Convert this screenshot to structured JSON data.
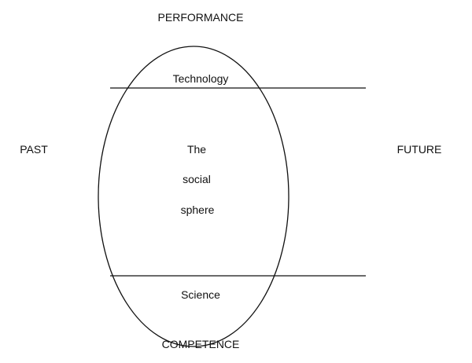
{
  "labels": {
    "top": "PERFORMANCE",
    "bottom": "COMPETENCE",
    "left": "PAST",
    "right": "FUTURE",
    "upper_band": "Technology",
    "lower_band": "Science",
    "center_line1": "The",
    "center_line2": "social",
    "center_line3": "sphere"
  },
  "colors": {
    "stroke": "#111111",
    "background": "#ffffff"
  }
}
